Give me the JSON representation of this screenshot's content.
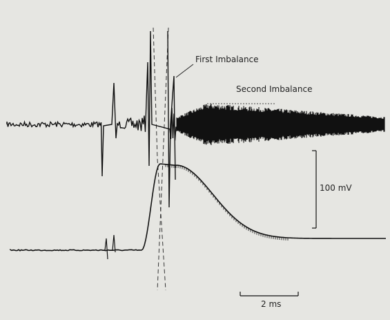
{
  "annotations": {
    "first": "First Imbalance",
    "second": "Second Imbalance"
  },
  "scale_bars": {
    "voltage": "100 mV",
    "time": "2 ms"
  }
}
